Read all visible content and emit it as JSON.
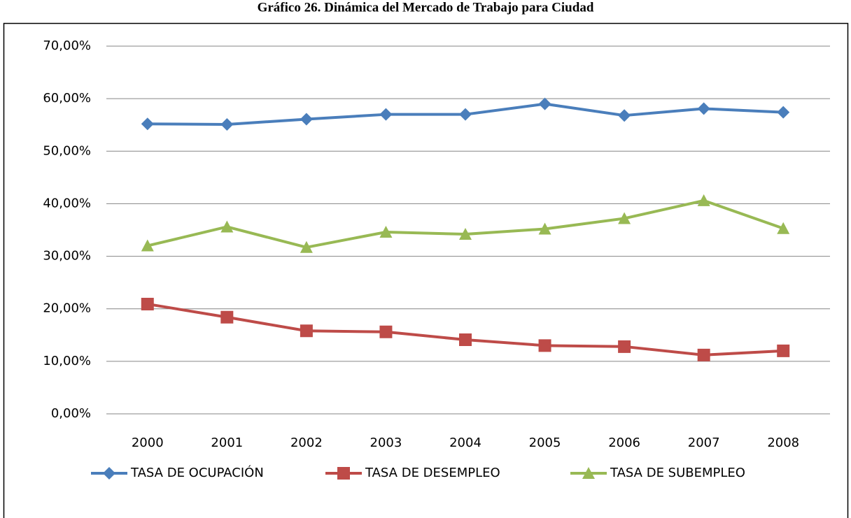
{
  "chart_data": {
    "type": "line",
    "title": "Gráfico 26. Dinámica del Mercado de Trabajo para Ciudad",
    "categories": [
      "2000",
      "2001",
      "2002",
      "2003",
      "2004",
      "2005",
      "2006",
      "2007",
      "2008"
    ],
    "series": [
      {
        "name": "TASA DE OCUPACIÓN",
        "color": "#4a7ebb",
        "marker": "diamond",
        "values": [
          55.2,
          55.1,
          56.1,
          57.0,
          57.0,
          59.0,
          56.8,
          58.1,
          57.4
        ]
      },
      {
        "name": "TASA DE DESEMPLEO",
        "color": "#be4b48",
        "marker": "square",
        "values": [
          20.9,
          18.4,
          15.8,
          15.6,
          14.1,
          13.0,
          12.8,
          11.2,
          12.0
        ]
      },
      {
        "name": "TASA DE SUBEMPLEO",
        "color": "#98b954",
        "marker": "triangle",
        "values": [
          32.0,
          35.6,
          31.7,
          34.6,
          34.2,
          35.2,
          37.2,
          40.6,
          35.3
        ]
      }
    ],
    "ylim": [
      0,
      70
    ],
    "yticks": [
      {
        "value": 0,
        "label": "0,00%"
      },
      {
        "value": 10,
        "label": "10,00%"
      },
      {
        "value": 20,
        "label": "20,00%"
      },
      {
        "value": 30,
        "label": "30,00%"
      },
      {
        "value": 40,
        "label": "40,00%"
      },
      {
        "value": 50,
        "label": "50,00%"
      },
      {
        "value": 60,
        "label": "60,00%"
      },
      {
        "value": 70,
        "label": "70,00%"
      }
    ],
    "grid": true,
    "legend": "bottom"
  }
}
